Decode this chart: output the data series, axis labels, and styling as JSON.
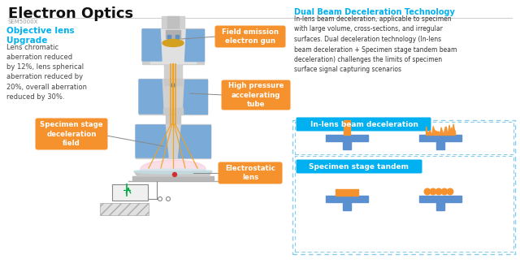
{
  "title": "Electron Optics",
  "subtitle": "SEM5000X",
  "bg_color": "#f5f5f5",
  "title_color": "#1a1a1a",
  "cyan_color": "#00b0f0",
  "orange_color": "#f5922e",
  "blue_color": "#5b90d0",
  "gray_light": "#d8d8d8",
  "gray_mid": "#b8b8b8",
  "left_heading": "Objective lens\nUpgrade",
  "left_body": "Lens chromatic\naberration reduced\nby 12%, lens spherical\naberration reduced by\n20%, overall aberration\nreduced by 30%.",
  "label_gun": "Field emission\nelectron gun",
  "label_tube": "High pressure\naccelerating\ntube",
  "label_spec": "Specimen stage\ndeceleration\nfield",
  "label_lens": "Electrostatic\nlens",
  "right_title": "Dual Beam Deceleration Technology",
  "right_body1": "In-lens beam deceleration, applicable to specimen",
  "right_body2": "with large volume, cross-sections, and irregular",
  "right_body3": "surfaces. Dual deceleration technology (In-lens",
  "right_body4": "beam deceleration + Specimen stage tandem beam",
  "right_body5": "deceleration) challenges the limits of specimen",
  "right_body6": "surface signal capturing scenarios",
  "box1_label": "In-lens beam deceleration",
  "box2_label": "Specimen stage tandem"
}
